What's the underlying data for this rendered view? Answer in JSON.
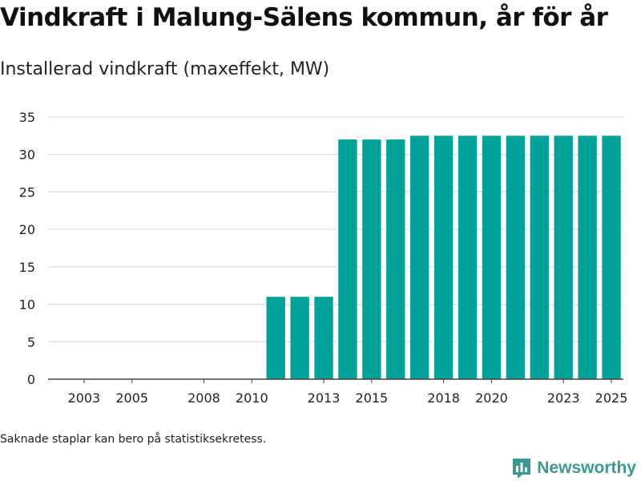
{
  "title": "Vindkraft i Malung-Sälens kommun, år för år",
  "subtitle": "Installerad vindkraft (maxeffekt, MW)",
  "footnote": "Saknade staplar kan bero på statistiksekretess.",
  "brand": "Newsworthy",
  "colors": {
    "bar": "#00a198",
    "grid": "#d6d6d6",
    "axis": "#444444",
    "brand": "#3a9a8e"
  },
  "chart_data": {
    "type": "bar",
    "title": "Vindkraft i Malung-Sälens kommun, år för år",
    "ylabel": "Installerad vindkraft (maxeffekt, MW)",
    "xlabel": "",
    "ylim": [
      0,
      35
    ],
    "yticks": [
      0,
      5,
      10,
      15,
      20,
      25,
      30,
      35
    ],
    "xticks": [
      2003,
      2005,
      2008,
      2010,
      2013,
      2015,
      2018,
      2020,
      2023,
      2025
    ],
    "grid": true,
    "categories": [
      2002,
      2003,
      2004,
      2005,
      2006,
      2007,
      2008,
      2009,
      2010,
      2011,
      2012,
      2013,
      2014,
      2015,
      2016,
      2017,
      2018,
      2019,
      2020,
      2021,
      2022,
      2023,
      2024,
      2025
    ],
    "values": [
      0,
      0,
      0,
      0,
      0,
      0,
      0,
      0,
      0,
      11,
      11,
      11,
      32,
      32,
      32,
      32.5,
      32.5,
      32.5,
      32.5,
      32.5,
      32.5,
      32.5,
      32.5,
      32.5
    ]
  }
}
